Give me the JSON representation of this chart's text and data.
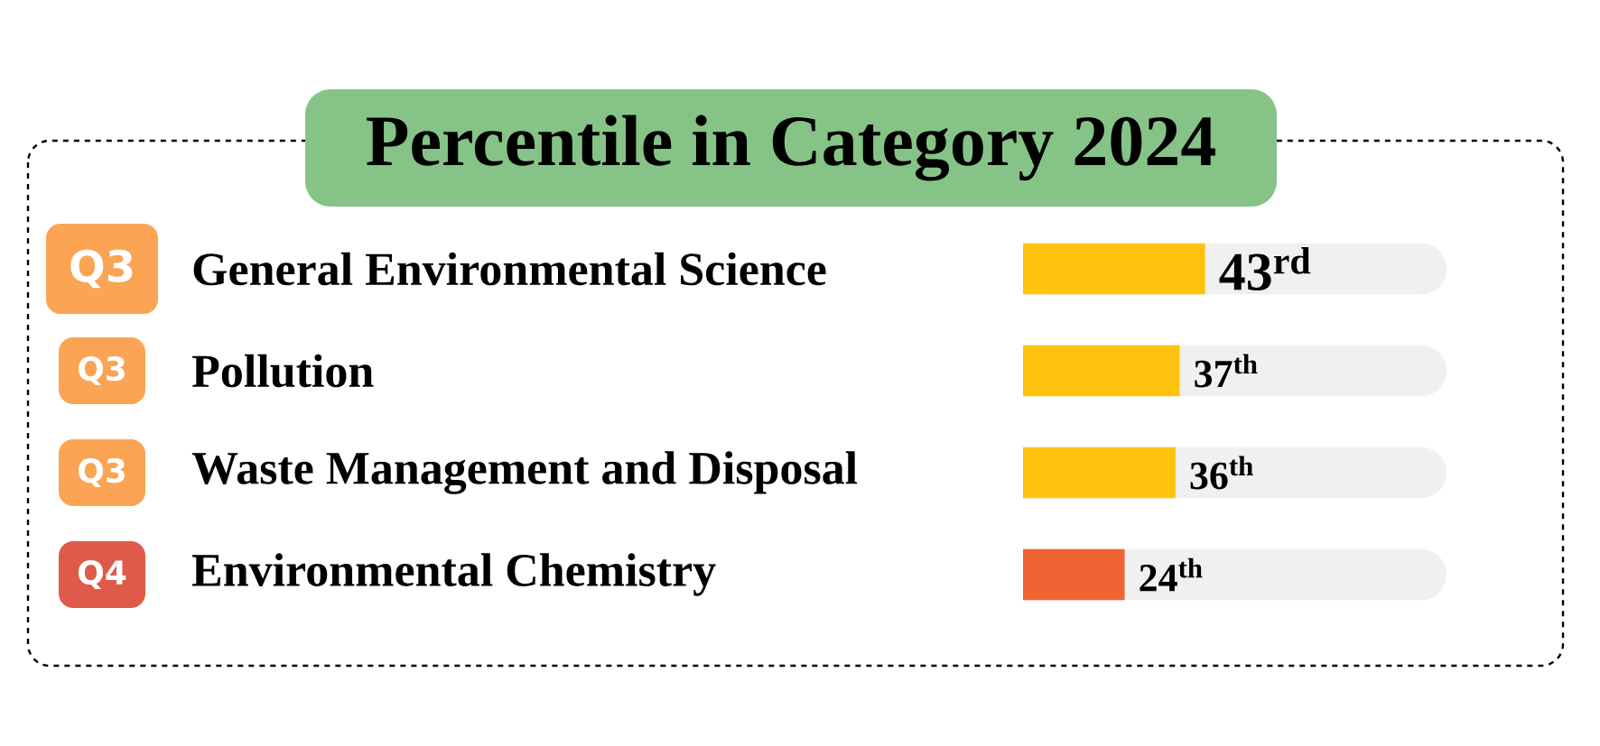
{
  "chart_data": {
    "type": "bar",
    "orientation": "horizontal",
    "title": "Percentile in Category 2024",
    "categories": [
      "General Environmental Science",
      "Pollution",
      "Waste Management and Disposal",
      "Environmental Chemistry"
    ],
    "values": [
      43,
      37,
      36,
      24
    ],
    "colors": [
      "#fec30f",
      "#fec30f",
      "#fec30f",
      "#f06434"
    ],
    "value_labels": [
      "43$^{rd}$",
      "37$^{th}$",
      "36$^{th}$",
      "24$^{th}$"
    ],
    "xlim": [
      0,
      100
    ],
    "tick_labels": "y",
    "annotations": [
      "Q3",
      "Q3",
      "Q3",
      "Q4"
    ]
  }
}
